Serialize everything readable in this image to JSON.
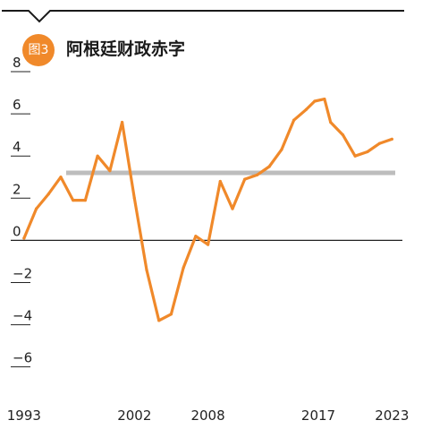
{
  "header": {
    "badge_label": "图3",
    "title": "阿根廷财政赤字",
    "rule_color": "#1a1a1a",
    "accent_color": "#f0892a"
  },
  "chart_data": {
    "type": "line",
    "title": "阿根廷财政赤字",
    "xlabel": "",
    "ylabel": "",
    "xlim": [
      1992.5,
      2024
    ],
    "ylim": [
      -7.5,
      8
    ],
    "y_ticks": [
      8,
      6,
      4,
      2,
      0,
      -2,
      -4,
      -6
    ],
    "y_tick_labels": [
      "8",
      "6",
      "4",
      "2",
      "0",
      "−2",
      "−4",
      "−6"
    ],
    "x_ticks": [
      1993,
      2002,
      2008,
      2017,
      2023
    ],
    "x_tick_labels": [
      "1993",
      "2002",
      "2008",
      "2017",
      "2023"
    ],
    "grid": false,
    "legend": "none",
    "reference_line": {
      "value": 3.2,
      "color": "#bdbdbd"
    },
    "series": [
      {
        "color": "#f0892a",
        "x": [
          1993,
          1994,
          1995,
          1996,
          1997,
          1998,
          1999,
          2000,
          2001,
          2002,
          2003,
          2004,
          2005,
          2006,
          2007,
          2008,
          2009,
          2010,
          2011,
          2012,
          2013,
          2014,
          2015,
          2016,
          2016.7,
          2017.5,
          2018,
          2019,
          2020,
          2021,
          2022,
          2023
        ],
        "values": [
          0.1,
          1.5,
          2.2,
          3.0,
          1.9,
          1.9,
          4.0,
          3.3,
          5.6,
          2.0,
          -1.4,
          -3.8,
          -3.5,
          -1.3,
          0.2,
          -0.2,
          2.8,
          1.5,
          2.9,
          3.1,
          3.5,
          4.3,
          5.7,
          6.2,
          6.6,
          6.7,
          5.6,
          5.0,
          4.0,
          4.2,
          4.6,
          4.8
        ]
      }
    ]
  }
}
